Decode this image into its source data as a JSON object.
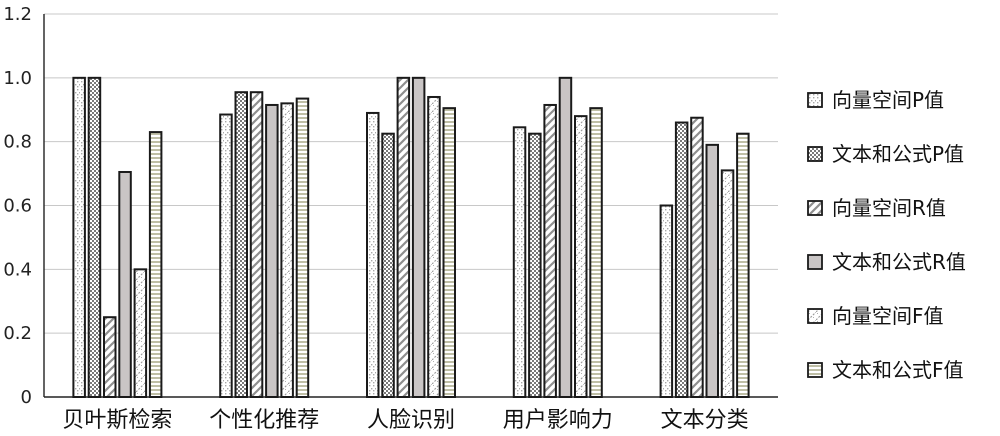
{
  "chart_data": {
    "type": "bar",
    "title": "",
    "xlabel": "",
    "ylabel": "",
    "categories": [
      "贝叶斯检索",
      "个性化推荐",
      "人脸识别",
      "用户影响力",
      "文本分类"
    ],
    "series": [
      {
        "name": "向量空间P值",
        "values": [
          1.0,
          0.885,
          0.89,
          0.845,
          0.6
        ],
        "pattern": "dots"
      },
      {
        "name": "文本和公式P值",
        "values": [
          1.0,
          0.955,
          0.825,
          0.825,
          0.86
        ],
        "pattern": "checker"
      },
      {
        "name": "向量空间R值",
        "values": [
          0.25,
          0.955,
          1.0,
          0.915,
          0.875
        ],
        "pattern": "diag"
      },
      {
        "name": "文本和公式R值",
        "values": [
          0.705,
          0.915,
          1.0,
          1.0,
          0.79
        ],
        "pattern": "solid"
      },
      {
        "name": "向量空间F值",
        "values": [
          0.4,
          0.92,
          0.94,
          0.88,
          0.71
        ],
        "pattern": "cross-dash"
      },
      {
        "name": "文本和公式F值",
        "values": [
          0.83,
          0.935,
          0.905,
          0.905,
          0.825
        ],
        "pattern": "hstripe"
      }
    ],
    "ylim": [
      0,
      1.2
    ],
    "yticks": [
      "0",
      "0.2",
      "0.4",
      "0.6",
      "0.8",
      "1.0",
      "1.2"
    ],
    "grid": true,
    "legend_position": "right"
  },
  "colors": {
    "bar_border": "#1a1a1a",
    "grid": "#c8c8c8",
    "solid_fill": "#c9c5c5",
    "pattern_fg": "#8f8f8f",
    "stripe_fg": "#bfbfa6"
  }
}
